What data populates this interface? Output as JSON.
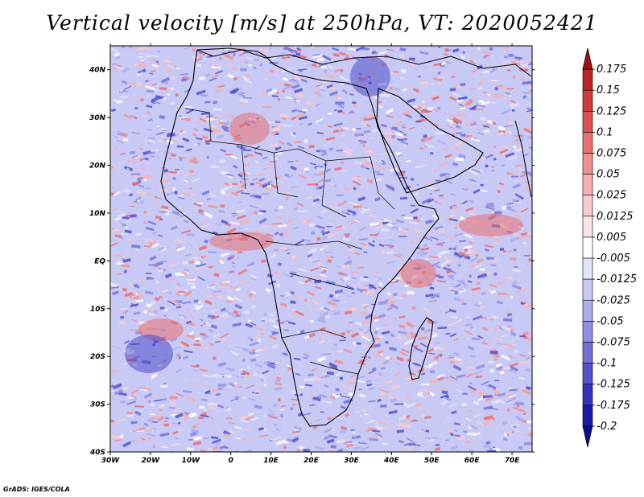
{
  "title": "Vertical velocity [m/s] at 250hPa, VT: 2020052421",
  "credit": "GrADS: IGES/COLA",
  "map": {
    "lon_range": [
      -30,
      75
    ],
    "lat_range": [
      -40,
      45
    ],
    "lon_ticks": [
      "30W",
      "20W",
      "10W",
      "0",
      "10E",
      "20E",
      "30E",
      "40E",
      "50E",
      "60E",
      "70E"
    ],
    "lat_ticks": [
      "40N",
      "30N",
      "20N",
      "10N",
      "EQ",
      "10S",
      "20S",
      "30S",
      "40S"
    ]
  },
  "colorbar": {
    "labels": [
      "0.175",
      "0.15",
      "0.125",
      "0.1",
      "0.075",
      "0.05",
      "0.025",
      "0.0125",
      "0.005",
      "-0.005",
      "-0.0125",
      "-0.025",
      "-0.05",
      "-0.075",
      "-0.1",
      "-0.125",
      "-0.175",
      "-0.2"
    ],
    "colors": [
      "#a01010",
      "#c02424",
      "#d23a3a",
      "#e05050",
      "#e87070",
      "#ef9090",
      "#f4b0b0",
      "#f8cccc",
      "#fbe6e6",
      "#ffffff",
      "#e4e4fb",
      "#c9c9f5",
      "#acacee",
      "#8f8fe6",
      "#7272dc",
      "#5252cf",
      "#3333c0",
      "#1a1aaa",
      "#0c0c90"
    ]
  }
}
